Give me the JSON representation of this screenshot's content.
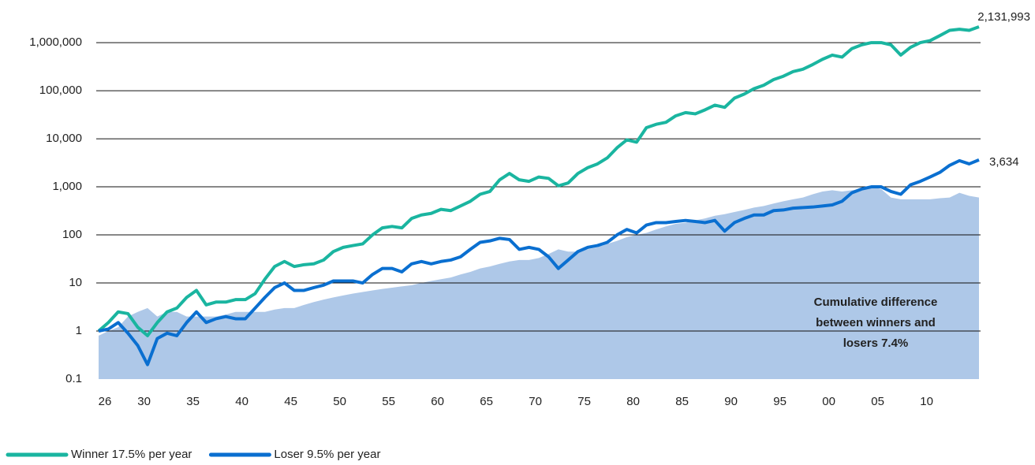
{
  "chart_data": {
    "type": "line",
    "log_scale": true,
    "grid": true,
    "categories": [
      "26",
      null,
      null,
      null,
      "30",
      null,
      null,
      null,
      null,
      "35",
      null,
      null,
      null,
      null,
      "40",
      null,
      null,
      null,
      null,
      "45",
      null,
      null,
      null,
      null,
      "50",
      null,
      null,
      null,
      null,
      "55",
      null,
      null,
      null,
      null,
      "60",
      null,
      null,
      null,
      null,
      "65",
      null,
      null,
      null,
      null,
      "70",
      null,
      null,
      null,
      null,
      "75",
      null,
      null,
      null,
      null,
      "80",
      null,
      null,
      null,
      null,
      "85",
      null,
      null,
      null,
      null,
      "90",
      null,
      null,
      null,
      null,
      "95",
      null,
      null,
      null,
      null,
      "00",
      null,
      null,
      null,
      null,
      "05",
      null,
      null,
      null,
      null,
      "10",
      null,
      null,
      null,
      null,
      null,
      null
    ],
    "ylim": [
      0.1,
      3000000
    ],
    "yticks": [
      0.1,
      1,
      10,
      100,
      {
        "value": 1000,
        "label": "1,000"
      },
      {
        "value": 10000,
        "label": "10,000"
      },
      {
        "value": 100000,
        "label": "100,000"
      },
      {
        "value": 1000000,
        "label": "1,000,000"
      }
    ],
    "area": {
      "color": "#aec8e8",
      "values": [
        0.8,
        1,
        1.2,
        2,
        2.5,
        3,
        2,
        2.5,
        2.5,
        2,
        2,
        2,
        2,
        2.2,
        2.5,
        2.5,
        2.5,
        2.5,
        2.8,
        3,
        3,
        3.5,
        4,
        4.5,
        5,
        5.5,
        6,
        6.5,
        7,
        7.5,
        8,
        8.5,
        9,
        10,
        11,
        12,
        13,
        15,
        17,
        20,
        22,
        25,
        28,
        30,
        30,
        33,
        40,
        50,
        45,
        45,
        50,
        55,
        65,
        75,
        90,
        100,
        110,
        130,
        150,
        170,
        180,
        200,
        220,
        250,
        270,
        300,
        330,
        370,
        400,
        450,
        500,
        550,
        600,
        700,
        800,
        850,
        800,
        850,
        900,
        1000,
        900,
        600,
        550,
        550,
        550,
        550,
        580,
        600,
        750,
        650,
        600
      ]
    },
    "series": [
      {
        "name": "Winner 17.5% per year",
        "color": "#1ab5a0",
        "values": [
          1,
          1.5,
          2.5,
          2.3,
          1.2,
          0.8,
          1.5,
          2.5,
          3,
          5,
          7,
          3.5,
          4,
          4,
          4.5,
          4.5,
          6,
          12,
          22,
          28,
          22,
          24,
          25,
          30,
          45,
          55,
          60,
          65,
          100,
          140,
          150,
          140,
          220,
          260,
          280,
          340,
          320,
          400,
          500,
          700,
          800,
          1400,
          1900,
          1400,
          1300,
          1600,
          1500,
          1050,
          1200,
          1900,
          2500,
          3000,
          4000,
          6500,
          9500,
          8500,
          17000,
          20000,
          22000,
          30000,
          35000,
          33000,
          40000,
          50000,
          45000,
          70000,
          85000,
          110000,
          130000,
          170000,
          200000,
          250000,
          280000,
          350000,
          450000,
          550000,
          500000,
          750000,
          900000,
          1000000,
          1000000,
          900000,
          550000,
          800000,
          1000000,
          1100000,
          1400000,
          1800000,
          1900000,
          1800000,
          2131993
        ]
      },
      {
        "name": "Loser 9.5% per year",
        "color": "#0a6fd0",
        "values": [
          1,
          1.1,
          1.5,
          0.9,
          0.5,
          0.2,
          0.7,
          0.9,
          0.8,
          1.5,
          2.5,
          1.5,
          1.8,
          2,
          1.8,
          1.8,
          3,
          5,
          8,
          10,
          7,
          7,
          8,
          9,
          11,
          11,
          11,
          10,
          15,
          20,
          20,
          17,
          25,
          28,
          25,
          28,
          30,
          35,
          50,
          70,
          75,
          85,
          80,
          50,
          55,
          50,
          35,
          20,
          30,
          45,
          55,
          60,
          70,
          100,
          130,
          110,
          160,
          180,
          180,
          190,
          200,
          190,
          180,
          200,
          120,
          180,
          220,
          260,
          260,
          320,
          330,
          360,
          370,
          380,
          400,
          420,
          500,
          750,
          900,
          1000,
          1000,
          800,
          700,
          1100,
          1300,
          1600,
          2000,
          2800,
          3500,
          3000,
          3634
        ]
      }
    ],
    "annotations": [
      "2,131,993",
      "3,634"
    ],
    "note": [
      "Cumulative difference",
      "between winners and",
      "losers 7.4%"
    ]
  }
}
